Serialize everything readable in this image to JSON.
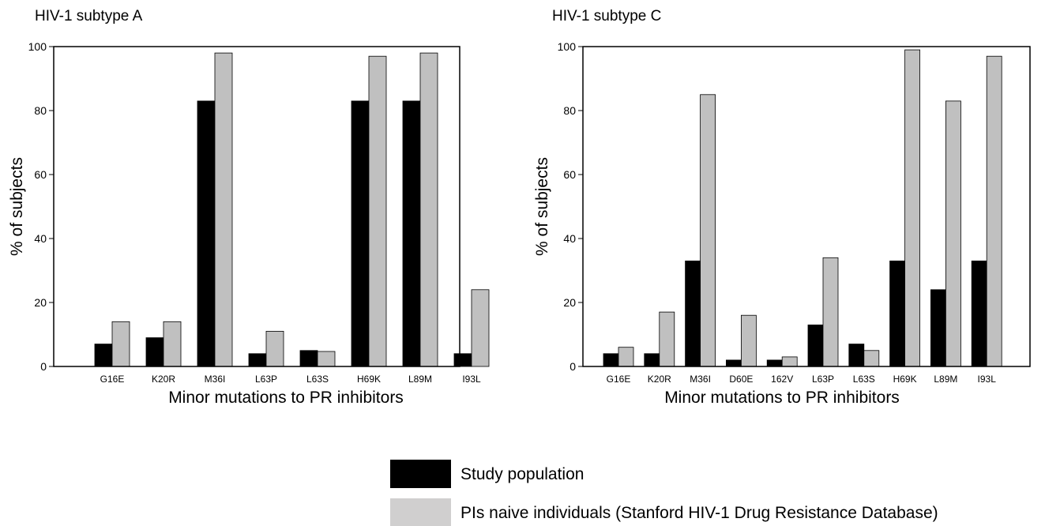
{
  "chart_data": [
    {
      "type": "bar",
      "title": "HIV-1 subtype A",
      "xlabel": "Minor mutations  to PR inhibitors",
      "ylabel": "% of subjects",
      "ylim": [
        0,
        100
      ],
      "yticks": [
        0,
        20,
        40,
        60,
        80,
        100
      ],
      "grid": false,
      "categories": [
        "G16E",
        "K20R",
        "M36I",
        "L63P",
        "L63S",
        "H69K",
        "L89M",
        "I93L"
      ],
      "series": [
        {
          "name": "Study population",
          "color": "#000000",
          "values": [
            7,
            9,
            83,
            4,
            5,
            83,
            83,
            4
          ]
        },
        {
          "name": "PIs naive individuals (Stanford HIV-1 Drug Resistance Database)",
          "color": "#c0c0c0",
          "values": [
            14,
            14,
            98,
            11,
            4.7,
            97,
            98,
            24
          ]
        }
      ]
    },
    {
      "type": "bar",
      "title": "HIV-1 subtype C",
      "xlabel": "Minor mutations  to PR inhibitors",
      "ylabel": "% of subjects",
      "ylim": [
        0,
        100
      ],
      "yticks": [
        0,
        20,
        40,
        60,
        80,
        100
      ],
      "grid": false,
      "categories": [
        "G16E",
        "K20R",
        "M36I",
        "D60E",
        "162V",
        "L63P",
        "L63S",
        "H69K",
        "L89M",
        "I93L"
      ],
      "series": [
        {
          "name": "Study population",
          "color": "#000000",
          "values": [
            4,
            4,
            33,
            2,
            2,
            13,
            7,
            33,
            24,
            33
          ]
        },
        {
          "name": "PIs naive individuals (Stanford HIV-1 Drug Resistance Database)",
          "color": "#c0c0c0",
          "values": [
            6,
            17,
            85,
            16,
            3,
            34,
            5,
            99,
            83,
            97
          ]
        }
      ]
    }
  ],
  "legend": {
    "position": "bottom-center",
    "items": [
      {
        "label": "Study population",
        "color": "#000000"
      },
      {
        "label": "PIs naive individuals (Stanford HIV-1 Drug Resistance Database)",
        "color": "#d0cfcf"
      }
    ]
  }
}
